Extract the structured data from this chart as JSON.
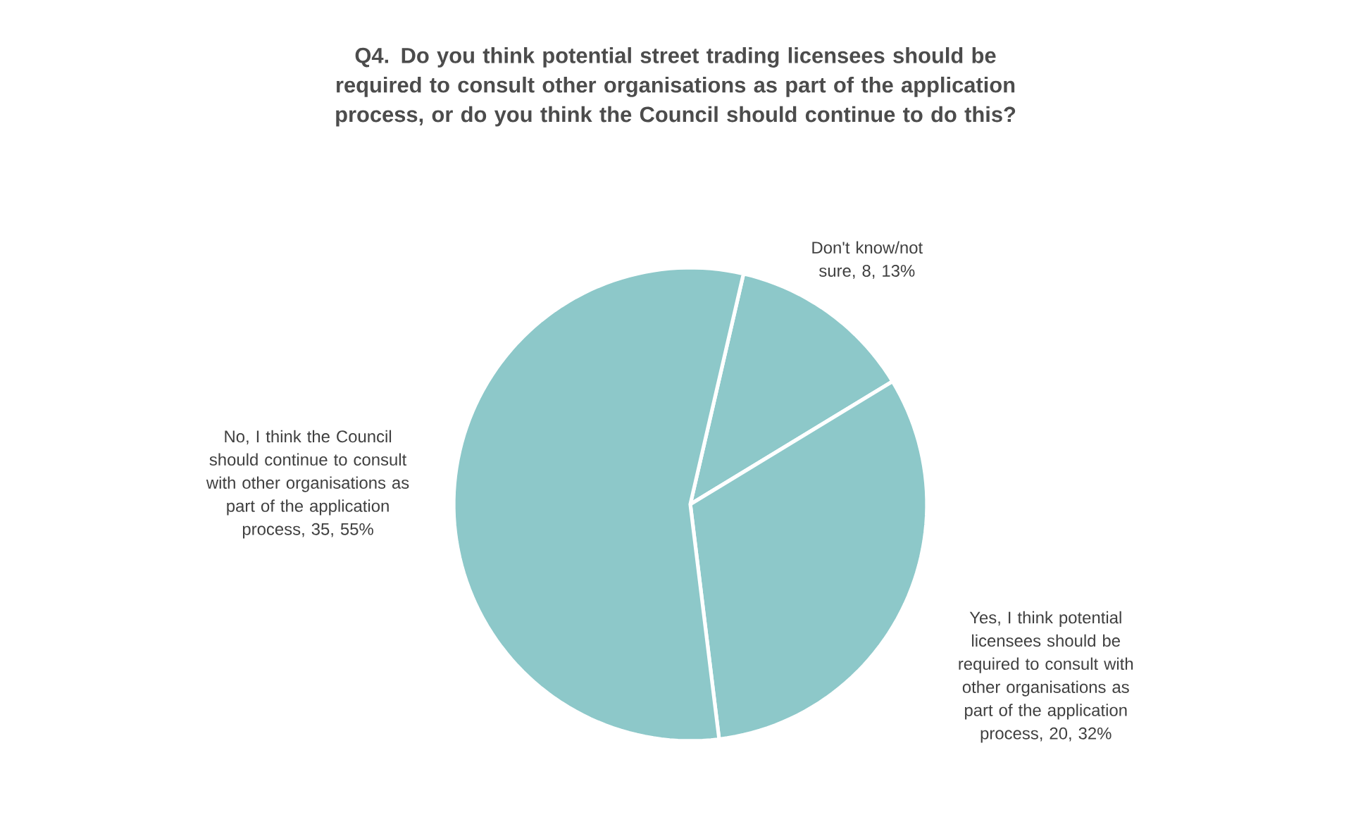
{
  "chart_data": {
    "type": "pie",
    "title": "Q4. Do you think potential street trading licensees should be required to consult other organisations as part of the application process, or do you think the Council should continue to do this?",
    "categories": [
      "Don't know/not sure, 8, 13%",
      "Yes, I think potential licensees should be required to consult with other organisations as part of the application process, 20, 32%",
      "No, I think the Council should continue to consult with other organisations as part of the application process, 35, 55%"
    ],
    "values": [
      8,
      20,
      35
    ],
    "colors": [
      "#8dc8c9",
      "#8dc8c9",
      "#8dc8c9"
    ]
  }
}
